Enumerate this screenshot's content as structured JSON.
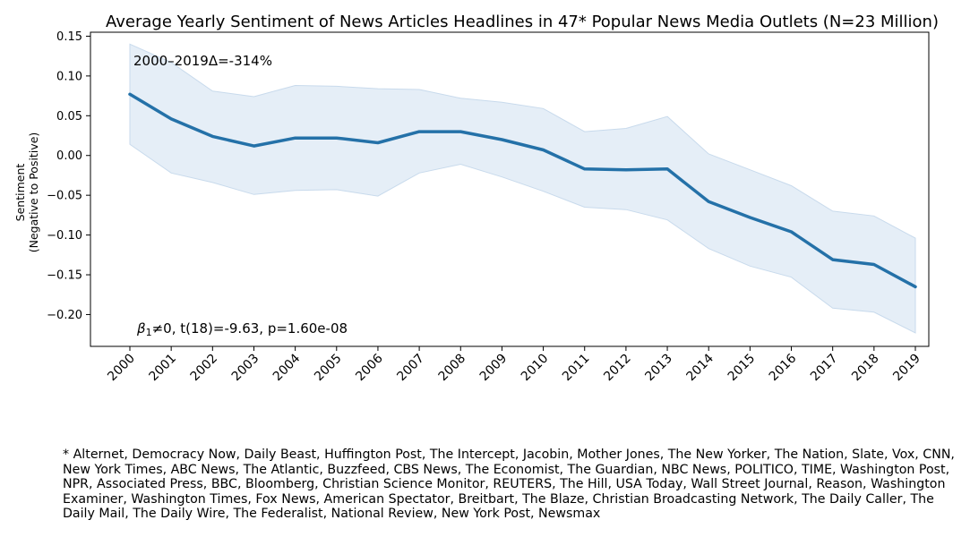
{
  "chart_data": {
    "type": "line",
    "title": "Average Yearly Sentiment of News Articles Headlines in 47* Popular News Media Outlets (N=23 Million)",
    "ylabel_line1": "Sentiment",
    "ylabel_line2": "(Negative to Positive)",
    "xlabel": "",
    "x": [
      "2000",
      "2001",
      "2002",
      "2003",
      "2004",
      "2005",
      "2006",
      "2007",
      "2008",
      "2009",
      "2010",
      "2011",
      "2012",
      "2013",
      "2014",
      "2015",
      "2016",
      "2017",
      "2018",
      "2019"
    ],
    "series": [
      {
        "values": [
          0.077,
          0.046,
          0.024,
          0.012,
          0.022,
          0.022,
          0.016,
          0.03,
          0.03,
          0.02,
          0.007,
          -0.017,
          -0.018,
          -0.017,
          -0.058,
          -0.078,
          -0.096,
          -0.131,
          -0.137,
          -0.165
        ],
        "upper": [
          0.14,
          0.117,
          0.081,
          0.074,
          0.088,
          0.087,
          0.084,
          0.083,
          0.072,
          0.067,
          0.059,
          0.03,
          0.034,
          0.049,
          0.002,
          -0.018,
          -0.038,
          -0.07,
          -0.076,
          -0.104
        ],
        "lower": [
          0.014,
          -0.022,
          -0.034,
          -0.049,
          -0.044,
          -0.043,
          -0.051,
          -0.022,
          -0.011,
          -0.027,
          -0.045,
          -0.065,
          -0.068,
          -0.081,
          -0.117,
          -0.139,
          -0.153,
          -0.192,
          -0.197,
          -0.223
        ]
      }
    ],
    "ylim": [
      -0.24,
      0.155
    ],
    "yticks": [
      0.15,
      0.1,
      0.05,
      0.0,
      -0.05,
      -0.1,
      -0.15,
      -0.2
    ],
    "ytick_labels": [
      "0.15",
      "0.10",
      "0.05",
      "0.00",
      "−0.05",
      "−0.10",
      "−0.15",
      "−0.20"
    ],
    "annotation_top": "2000–2019Δ=-314%",
    "annotation_bottom_beta": "β",
    "annotation_bottom_sub": "1",
    "annotation_bottom_rest": "≠0, t(18)=-9.63, p=1.60e-08",
    "line_color": "#2471a8",
    "band_color": "#e5eef7",
    "band_edge_color": "#c8daec",
    "grid": false
  },
  "footnote": "* Alternet, Democracy Now, Daily Beast, Huffington Post, The Intercept, Jacobin, Mother Jones, The New Yorker, The Nation, Slate, Vox, CNN, New York Times, ABC News, The Atlantic, Buzzfeed, CBS News, The Economist, The Guardian, NBC News, POLITICO, TIME, Washington Post, NPR, Associated Press, BBC, Bloomberg, Christian Science Monitor, REUTERS, The Hill, USA Today, Wall Street Journal, Reason, Washington Examiner, Washington Times, Fox News, American Spectator, Breitbart, The Blaze, Christian Broadcasting Network, The Daily Caller, The Daily Mail, The Daily Wire, The Federalist, National Review, New York Post, Newsmax"
}
